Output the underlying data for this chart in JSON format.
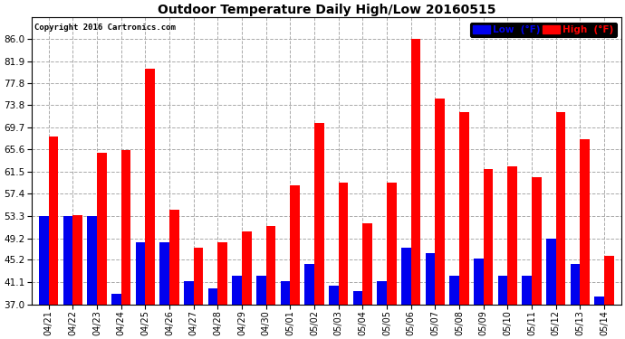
{
  "title": "Outdoor Temperature Daily High/Low 20160515",
  "copyright": "Copyright 2016 Cartronics.com",
  "categories": [
    "04/21",
    "04/22",
    "04/23",
    "04/24",
    "04/25",
    "04/26",
    "04/27",
    "04/28",
    "04/29",
    "04/30",
    "05/01",
    "05/02",
    "05/03",
    "05/04",
    "05/05",
    "05/06",
    "05/07",
    "05/08",
    "05/09",
    "05/10",
    "05/11",
    "05/12",
    "05/13",
    "05/14"
  ],
  "high_values": [
    68.0,
    53.5,
    65.0,
    65.5,
    80.5,
    54.5,
    47.5,
    48.5,
    50.5,
    51.5,
    59.0,
    70.5,
    59.5,
    52.0,
    59.5,
    86.0,
    75.0,
    72.5,
    62.0,
    62.5,
    60.5,
    72.5,
    67.5,
    46.0
  ],
  "low_values": [
    53.3,
    53.3,
    53.3,
    39.0,
    48.5,
    48.5,
    41.2,
    40.0,
    42.2,
    42.2,
    41.2,
    44.5,
    40.5,
    39.5,
    41.2,
    47.5,
    46.5,
    42.2,
    45.5,
    42.2,
    42.2,
    49.2,
    44.5,
    38.5
  ],
  "high_color": "#ff0000",
  "low_color": "#0000ee",
  "background_color": "#ffffff",
  "plot_bg_color": "#ffffff",
  "grid_color": "#aaaaaa",
  "title_color": "#000000",
  "ylim": [
    37.0,
    90.0
  ],
  "yticks": [
    37.0,
    41.1,
    45.2,
    49.2,
    53.3,
    57.4,
    61.5,
    65.6,
    69.7,
    73.8,
    77.8,
    81.9,
    86.0
  ],
  "legend_low_label": "Low  (°F)",
  "legend_high_label": "High  (°F)",
  "figwidth": 6.9,
  "figheight": 3.75,
  "dpi": 100
}
